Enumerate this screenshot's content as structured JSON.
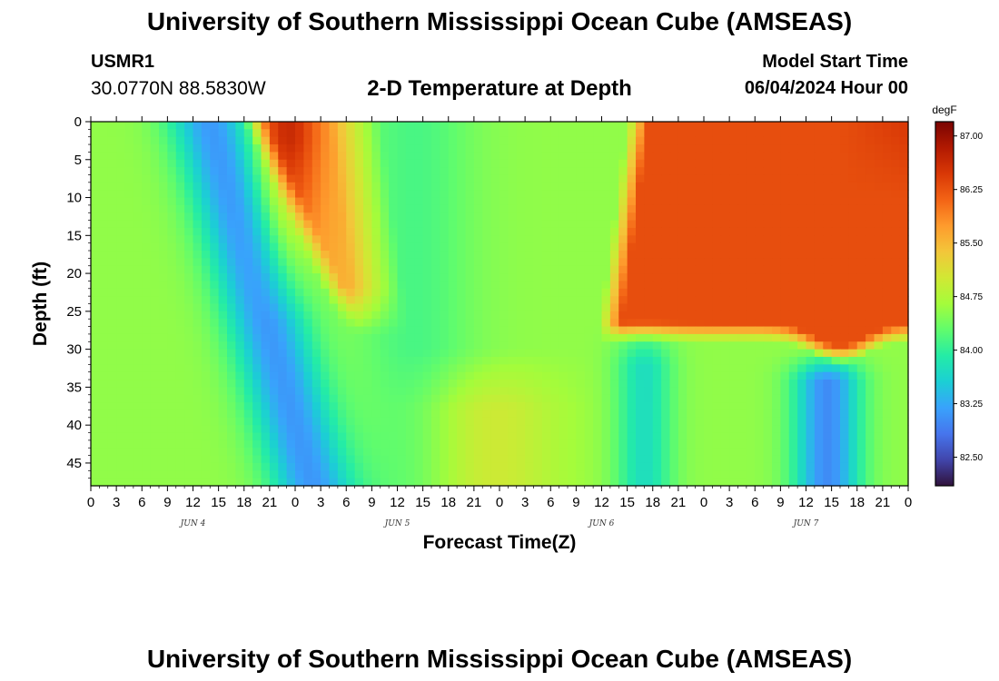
{
  "header": {
    "title": "University of Southern Mississippi Ocean Cube (AMSEAS)",
    "station": "USMR1",
    "coords": "30.0770N  88.5830W",
    "subtitle": "2-D Temperature at Depth",
    "model_start_label": "Model Start Time",
    "model_start_value": "06/04/2024 Hour 00"
  },
  "footer": {
    "title": "University of Southern Mississippi Ocean Cube (AMSEAS)"
  },
  "chart_data": {
    "type": "heatmap",
    "title": "2-D Temperature at Depth",
    "xlabel": "Forecast Time(Z)",
    "ylabel": "Depth (ft)",
    "x_ticks": [
      "0",
      "3",
      "6",
      "9",
      "12",
      "15",
      "18",
      "21",
      "0",
      "3",
      "6",
      "9",
      "12",
      "15",
      "18",
      "21",
      "0",
      "3",
      "6",
      "9",
      "12",
      "15",
      "18",
      "21",
      "0",
      "3",
      "6",
      "9",
      "12",
      "15",
      "18",
      "21",
      "0"
    ],
    "x_range_hours": [
      0,
      96
    ],
    "date_labels": [
      {
        "label": "JUN 4",
        "hour": 12
      },
      {
        "label": "JUN 5",
        "hour": 36
      },
      {
        "label": "JUN 6",
        "hour": 60
      },
      {
        "label": "JUN 7",
        "hour": 84
      }
    ],
    "y_ticks": [
      0,
      5,
      10,
      15,
      20,
      25,
      30,
      35,
      40,
      45
    ],
    "ylim": [
      0,
      48
    ],
    "y_inverted": true,
    "colorbar": {
      "unit": "degF",
      "range": [
        82.1,
        87.2
      ],
      "tick_labels": [
        "87.00",
        "86.25",
        "85.50",
        "84.75",
        "84.00",
        "83.25",
        "82.50"
      ],
      "tick_values": [
        87.0,
        86.25,
        85.5,
        84.75,
        84.0,
        83.25,
        82.5
      ],
      "colors": [
        "#30123b",
        "#4145ab",
        "#4675ed",
        "#39a2fc",
        "#1bcfd4",
        "#24eca6",
        "#61fc6c",
        "#a4fc3b",
        "#d1e834",
        "#f3c63a",
        "#fe9b2d",
        "#f36315",
        "#d93806",
        "#b11901",
        "#7a0402"
      ]
    },
    "grid": false
  }
}
